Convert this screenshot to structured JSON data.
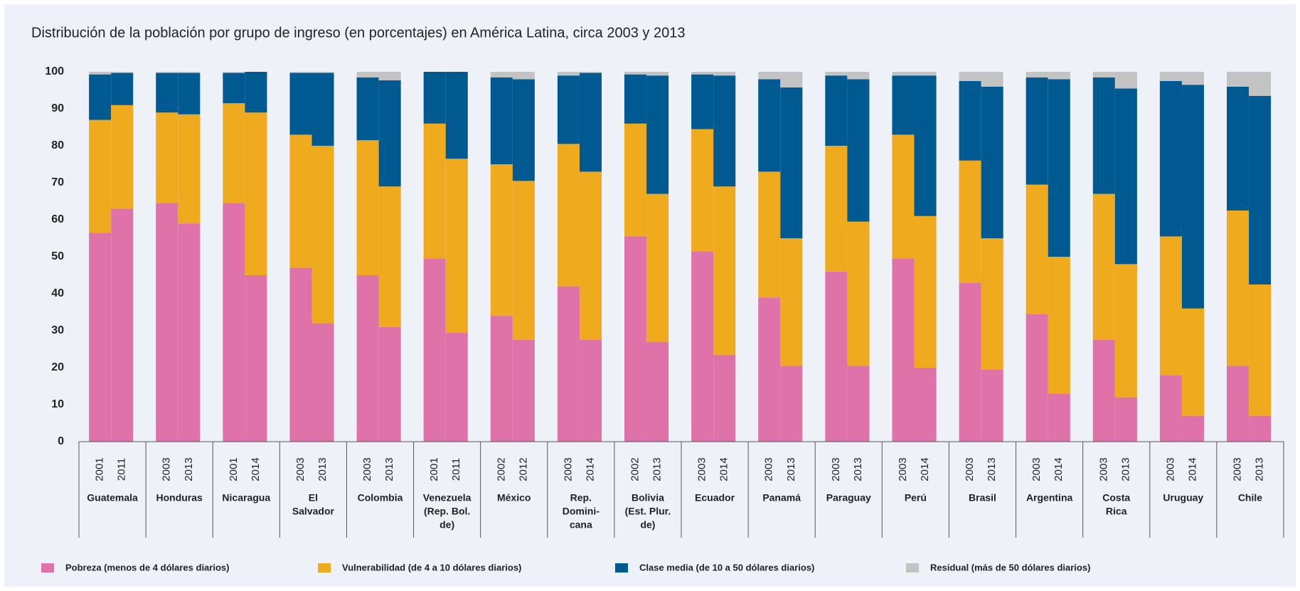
{
  "chart_data": {
    "type": "stacked_bar",
    "title": "Distribución de la población por grupo de ingreso (en porcentajes) en América Latina, circa 2003 y 2013",
    "groups": [
      {
        "name": [
          "Guatemala"
        ],
        "years": [
          "2001",
          "2011"
        ]
      },
      {
        "name": [
          "Honduras"
        ],
        "years": [
          "2003",
          "2013"
        ]
      },
      {
        "name": [
          "Nicaragua"
        ],
        "years": [
          "2001",
          "2014"
        ]
      },
      {
        "name": [
          "El",
          "Salvador"
        ],
        "years": [
          "2003",
          "2013"
        ]
      },
      {
        "name": [
          "Colombia"
        ],
        "years": [
          "2003",
          "2013"
        ]
      },
      {
        "name": [
          "Venezuela",
          "(Rep. Bol.",
          "de)"
        ],
        "years": [
          "2001",
          "2011"
        ]
      },
      {
        "name": [
          "México"
        ],
        "years": [
          "2002",
          "2012"
        ]
      },
      {
        "name": [
          "Rep.",
          "Domini-",
          "cana"
        ],
        "years": [
          "2003",
          "2014"
        ]
      },
      {
        "name": [
          "Bolivia",
          "(Est. Plur.",
          "de)"
        ],
        "years": [
          "2002",
          "2013"
        ]
      },
      {
        "name": [
          "Ecuador"
        ],
        "years": [
          "2003",
          "2014"
        ]
      },
      {
        "name": [
          "Panamá"
        ],
        "years": [
          "2003",
          "2013"
        ]
      },
      {
        "name": [
          "Paraguay"
        ],
        "years": [
          "2003",
          "2013"
        ]
      },
      {
        "name": [
          "Perú"
        ],
        "years": [
          "2003",
          "2014"
        ]
      },
      {
        "name": [
          "Brasil"
        ],
        "years": [
          "2003",
          "2013"
        ]
      },
      {
        "name": [
          "Argentina"
        ],
        "years": [
          "2003",
          "2014"
        ]
      },
      {
        "name": [
          "Costa",
          "Rica"
        ],
        "years": [
          "2003",
          "2013"
        ]
      },
      {
        "name": [
          "Uruguay"
        ],
        "years": [
          "2003",
          "2014"
        ]
      },
      {
        "name": [
          "Chile"
        ],
        "years": [
          "2003",
          "2013"
        ]
      }
    ],
    "series": [
      {
        "name": "Pobreza (menos de 4 dólares diarios)",
        "color": "#e072aa",
        "values": [
          56.5,
          63,
          64.5,
          59,
          64.5,
          45,
          47,
          32,
          45,
          31,
          49.5,
          29.5,
          34,
          27.5,
          42,
          27.5,
          55.5,
          27,
          51.5,
          23.5,
          39,
          20.5,
          46,
          20.5,
          49.5,
          20,
          43,
          19.5,
          34.5,
          13,
          27.5,
          12,
          18,
          7,
          20.5,
          7
        ]
      },
      {
        "name": "Vulnerabilidad (de 4 a 10 dólares diarios)",
        "color": "#f0aa1e",
        "values": [
          30.5,
          28,
          24.5,
          29.5,
          27,
          44,
          36,
          48,
          36.5,
          38,
          36.5,
          47,
          41,
          43,
          38.5,
          45.5,
          30.5,
          40,
          33,
          45.5,
          34,
          34.5,
          34,
          39,
          33.5,
          41,
          33,
          35.5,
          35,
          37,
          39.5,
          36,
          37.5,
          29,
          42,
          35.5
        ]
      },
      {
        "name": "Clase media (de 10 a 50 dólares diarios)",
        "color": "#005a92",
        "values": [
          12.3,
          8.7,
          10.7,
          11.2,
          8.2,
          11,
          16.7,
          19.7,
          17,
          28.7,
          14,
          23.5,
          23.5,
          27.5,
          18.5,
          26.7,
          13.3,
          32,
          14.8,
          30,
          25,
          40.8,
          19,
          38.5,
          16,
          38,
          21.5,
          41,
          29,
          48,
          31.5,
          47.5,
          42,
          60.5,
          33.5,
          51
        ]
      },
      {
        "name": "Residual (más de 50 dólares diarios)",
        "color": "#c3c3c3",
        "values": [
          0.7,
          0.3,
          0.3,
          0.3,
          0.3,
          0,
          0.3,
          0.3,
          1.5,
          2.3,
          0,
          0,
          1.5,
          2,
          1,
          0.3,
          0.7,
          1,
          0.7,
          1,
          2,
          4.2,
          1,
          2,
          1,
          1,
          2.5,
          4,
          1.5,
          2,
          1.5,
          4.5,
          2.5,
          3.5,
          4,
          6.5
        ]
      }
    ],
    "ylim": [
      0,
      100
    ],
    "yticks": [
      0,
      10,
      20,
      30,
      40,
      50,
      60,
      70,
      80,
      90,
      100
    ],
    "grid": false,
    "legend": "bottom"
  }
}
